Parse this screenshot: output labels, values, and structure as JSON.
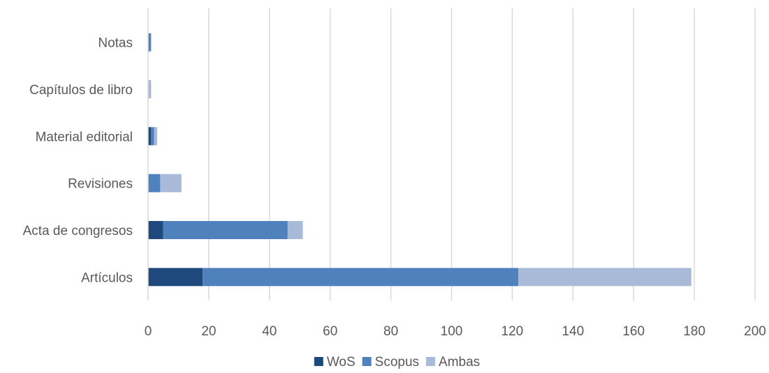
{
  "chart_data": {
    "type": "bar",
    "orientation": "horizontal",
    "stacked": true,
    "categories": [
      "Notas",
      "Capítulos de libro",
      "Material editorial",
      "Revisiones",
      "Acta de congresos",
      "Artículos"
    ],
    "series": [
      {
        "name": "WoS",
        "color": "#1f497d",
        "values": [
          0,
          0,
          1,
          0,
          5,
          18
        ]
      },
      {
        "name": "Scopus",
        "color": "#4f81bd",
        "values": [
          1,
          0,
          1,
          4,
          41,
          104
        ]
      },
      {
        "name": "Ambas",
        "color": "#a9b9d8",
        "values": [
          0,
          1,
          1,
          7,
          5,
          57
        ]
      }
    ],
    "xlim": [
      0,
      200
    ],
    "xticks": [
      "0",
      "20",
      "40",
      "60",
      "80",
      "100",
      "120",
      "140",
      "160",
      "180",
      "200"
    ],
    "grid": true,
    "legend": "bottom"
  }
}
